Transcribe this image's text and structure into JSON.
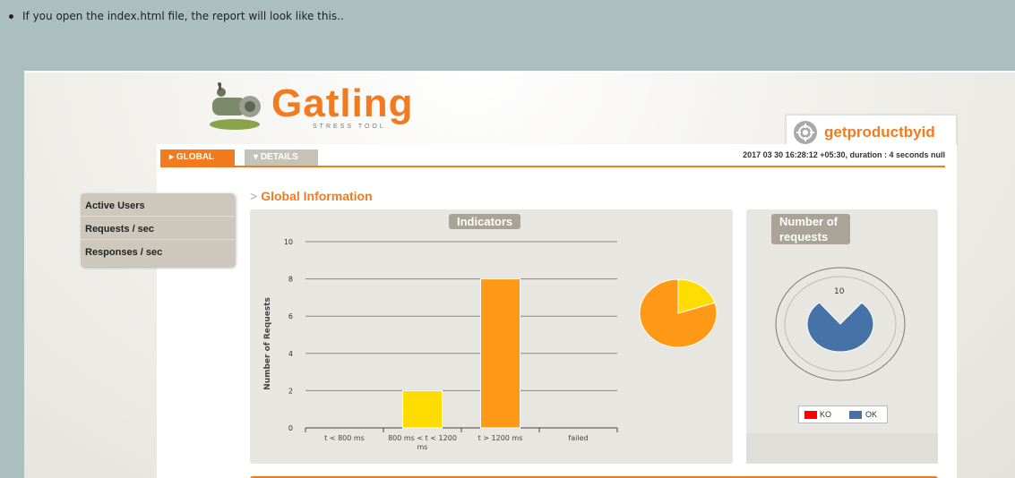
{
  "page": {
    "note": "If you open the index.html file, the report will look like this.."
  },
  "report": {
    "logo_text": "Gatling",
    "logo_subtitle": "STRESS TOOL",
    "simulation_name": "getproductbyid",
    "tabs": [
      {
        "label": "GLOBAL",
        "active": true
      },
      {
        "label": "DETAILS",
        "active": false
      }
    ],
    "run_info": "2017 03 30 16:28:12 +05:30, duration : 4 seconds null",
    "menu": [
      {
        "label": "Active Users"
      },
      {
        "label": "Requests / sec"
      },
      {
        "label": "Responses / sec"
      }
    ],
    "section_title": "Global Information",
    "indicators_label": "Indicators",
    "number_of_requests_label": "Number of requests",
    "colors": {
      "orange": "#f27b1f",
      "bar_yellow": "#ffdd00",
      "bar_orange": "#ff9916",
      "ok_blue": "#4572a7",
      "ko_red": "#ff0000"
    }
  },
  "chart_data": [
    {
      "type": "bar",
      "ylabel": "Number of Requests",
      "xlabel": "",
      "ylim": [
        0,
        10
      ],
      "yticks": [
        0,
        2,
        4,
        6,
        8,
        10
      ],
      "categories": [
        "t < 800 ms",
        "800 ms < t < 1200 ms",
        "t > 1200 ms",
        "failed"
      ],
      "values": [
        0,
        2,
        8,
        0
      ],
      "bar_colors": [
        "#68b65c",
        "#ffdd00",
        "#ff9916",
        "#f15b4f"
      ],
      "grid": true
    },
    {
      "type": "pie",
      "labels": [
        "800 ms < t < 1200 ms",
        "t > 1200 ms"
      ],
      "values": [
        2,
        8
      ],
      "colors": [
        "#ffdd00",
        "#ff9916"
      ]
    },
    {
      "type": "pie",
      "title": "Number of requests",
      "total_label": "10",
      "labels": [
        "KO",
        "OK"
      ],
      "values": [
        0,
        10
      ],
      "colors": [
        "#ff0000",
        "#4572a7"
      ],
      "legend": "bottom"
    }
  ]
}
